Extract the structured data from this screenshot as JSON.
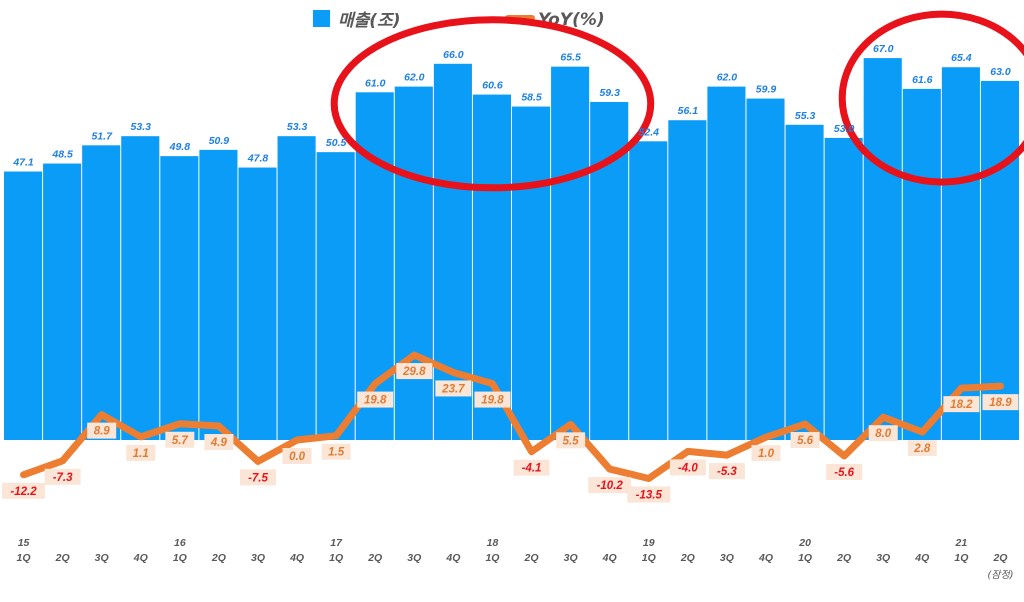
{
  "chart_data": {
    "type": "bar",
    "legend_position": "top-center",
    "grid": false,
    "categories": [
      {
        "year": "15",
        "quarter": "1Q"
      },
      {
        "year": "",
        "quarter": "2Q"
      },
      {
        "year": "",
        "quarter": "3Q"
      },
      {
        "year": "",
        "quarter": "4Q"
      },
      {
        "year": "16",
        "quarter": "1Q"
      },
      {
        "year": "",
        "quarter": "2Q"
      },
      {
        "year": "",
        "quarter": "3Q"
      },
      {
        "year": "",
        "quarter": "4Q"
      },
      {
        "year": "17",
        "quarter": "1Q"
      },
      {
        "year": "",
        "quarter": "2Q"
      },
      {
        "year": "",
        "quarter": "3Q"
      },
      {
        "year": "",
        "quarter": "4Q"
      },
      {
        "year": "18",
        "quarter": "1Q"
      },
      {
        "year": "",
        "quarter": "2Q"
      },
      {
        "year": "",
        "quarter": "3Q"
      },
      {
        "year": "",
        "quarter": "4Q"
      },
      {
        "year": "19",
        "quarter": "1Q"
      },
      {
        "year": "",
        "quarter": "2Q"
      },
      {
        "year": "",
        "quarter": "3Q"
      },
      {
        "year": "",
        "quarter": "4Q"
      },
      {
        "year": "20",
        "quarter": "1Q"
      },
      {
        "year": "",
        "quarter": "2Q"
      },
      {
        "year": "",
        "quarter": "3Q"
      },
      {
        "year": "",
        "quarter": "4Q"
      },
      {
        "year": "21",
        "quarter": "1Q"
      },
      {
        "year": "",
        "quarter": "2Q"
      }
    ],
    "last_category_note": "(잠정)",
    "series": [
      {
        "name": "매출(조)",
        "type": "bar",
        "axis": "left",
        "color": "#0a9cf7",
        "values": [
          47.1,
          48.5,
          51.7,
          53.3,
          49.8,
          50.9,
          47.8,
          53.3,
          50.5,
          61.0,
          62.0,
          66.0,
          60.6,
          58.5,
          65.5,
          59.3,
          52.4,
          56.1,
          62.0,
          59.9,
          55.3,
          53.0,
          67.0,
          61.6,
          65.4,
          63.0
        ],
        "labels": [
          "47.1",
          "48.5",
          "51.7",
          "53.3",
          "49.8",
          "50.9",
          "47.8",
          "53.3",
          "50.5",
          "61.0",
          "62.0",
          "66.0",
          "60.6",
          "58.5",
          "65.5",
          "59.3",
          "52.4",
          "56.1",
          "62.0",
          "59.9",
          "55.3",
          "53.0",
          "67.0",
          "61.6",
          "65.4",
          "63.0"
        ]
      },
      {
        "name": "YoY(%)",
        "type": "line",
        "axis": "right",
        "color": "#ed7d31",
        "values": [
          -12.2,
          -7.3,
          8.9,
          1.1,
          5.7,
          4.9,
          -7.5,
          0.0,
          1.5,
          19.8,
          29.8,
          23.7,
          19.8,
          -4.1,
          5.5,
          -10.2,
          -13.5,
          -4.0,
          -5.3,
          1.0,
          5.6,
          -5.6,
          8.0,
          2.8,
          18.2,
          18.9
        ],
        "labels": [
          "-12.2",
          "-7.3",
          "8.9",
          "1.1",
          "5.7",
          "4.9",
          "-7.5",
          "0.0",
          "1.5",
          "19.8",
          "29.8",
          "23.7",
          "19.8",
          "-4.1",
          "5.5",
          "-10.2",
          "-13.5",
          "-4.0",
          "-5.3",
          "1.0",
          "5.6",
          "-5.6",
          "8.0",
          "2.8",
          "18.2",
          "18.9"
        ]
      }
    ],
    "bar_ylim": [
      0,
      71.5
    ],
    "line_ylim": [
      -30,
      55
    ],
    "highlight_ellipses": [
      {
        "from_category": 9,
        "to_category": 15,
        "color": "#e8121b"
      },
      {
        "from_category": 22,
        "to_category": 25,
        "color": "#e8121b"
      }
    ],
    "positive_label_color": "#e07b32",
    "negative_label_color": "#e8121b",
    "label_box_color": "#fbe5d6"
  }
}
